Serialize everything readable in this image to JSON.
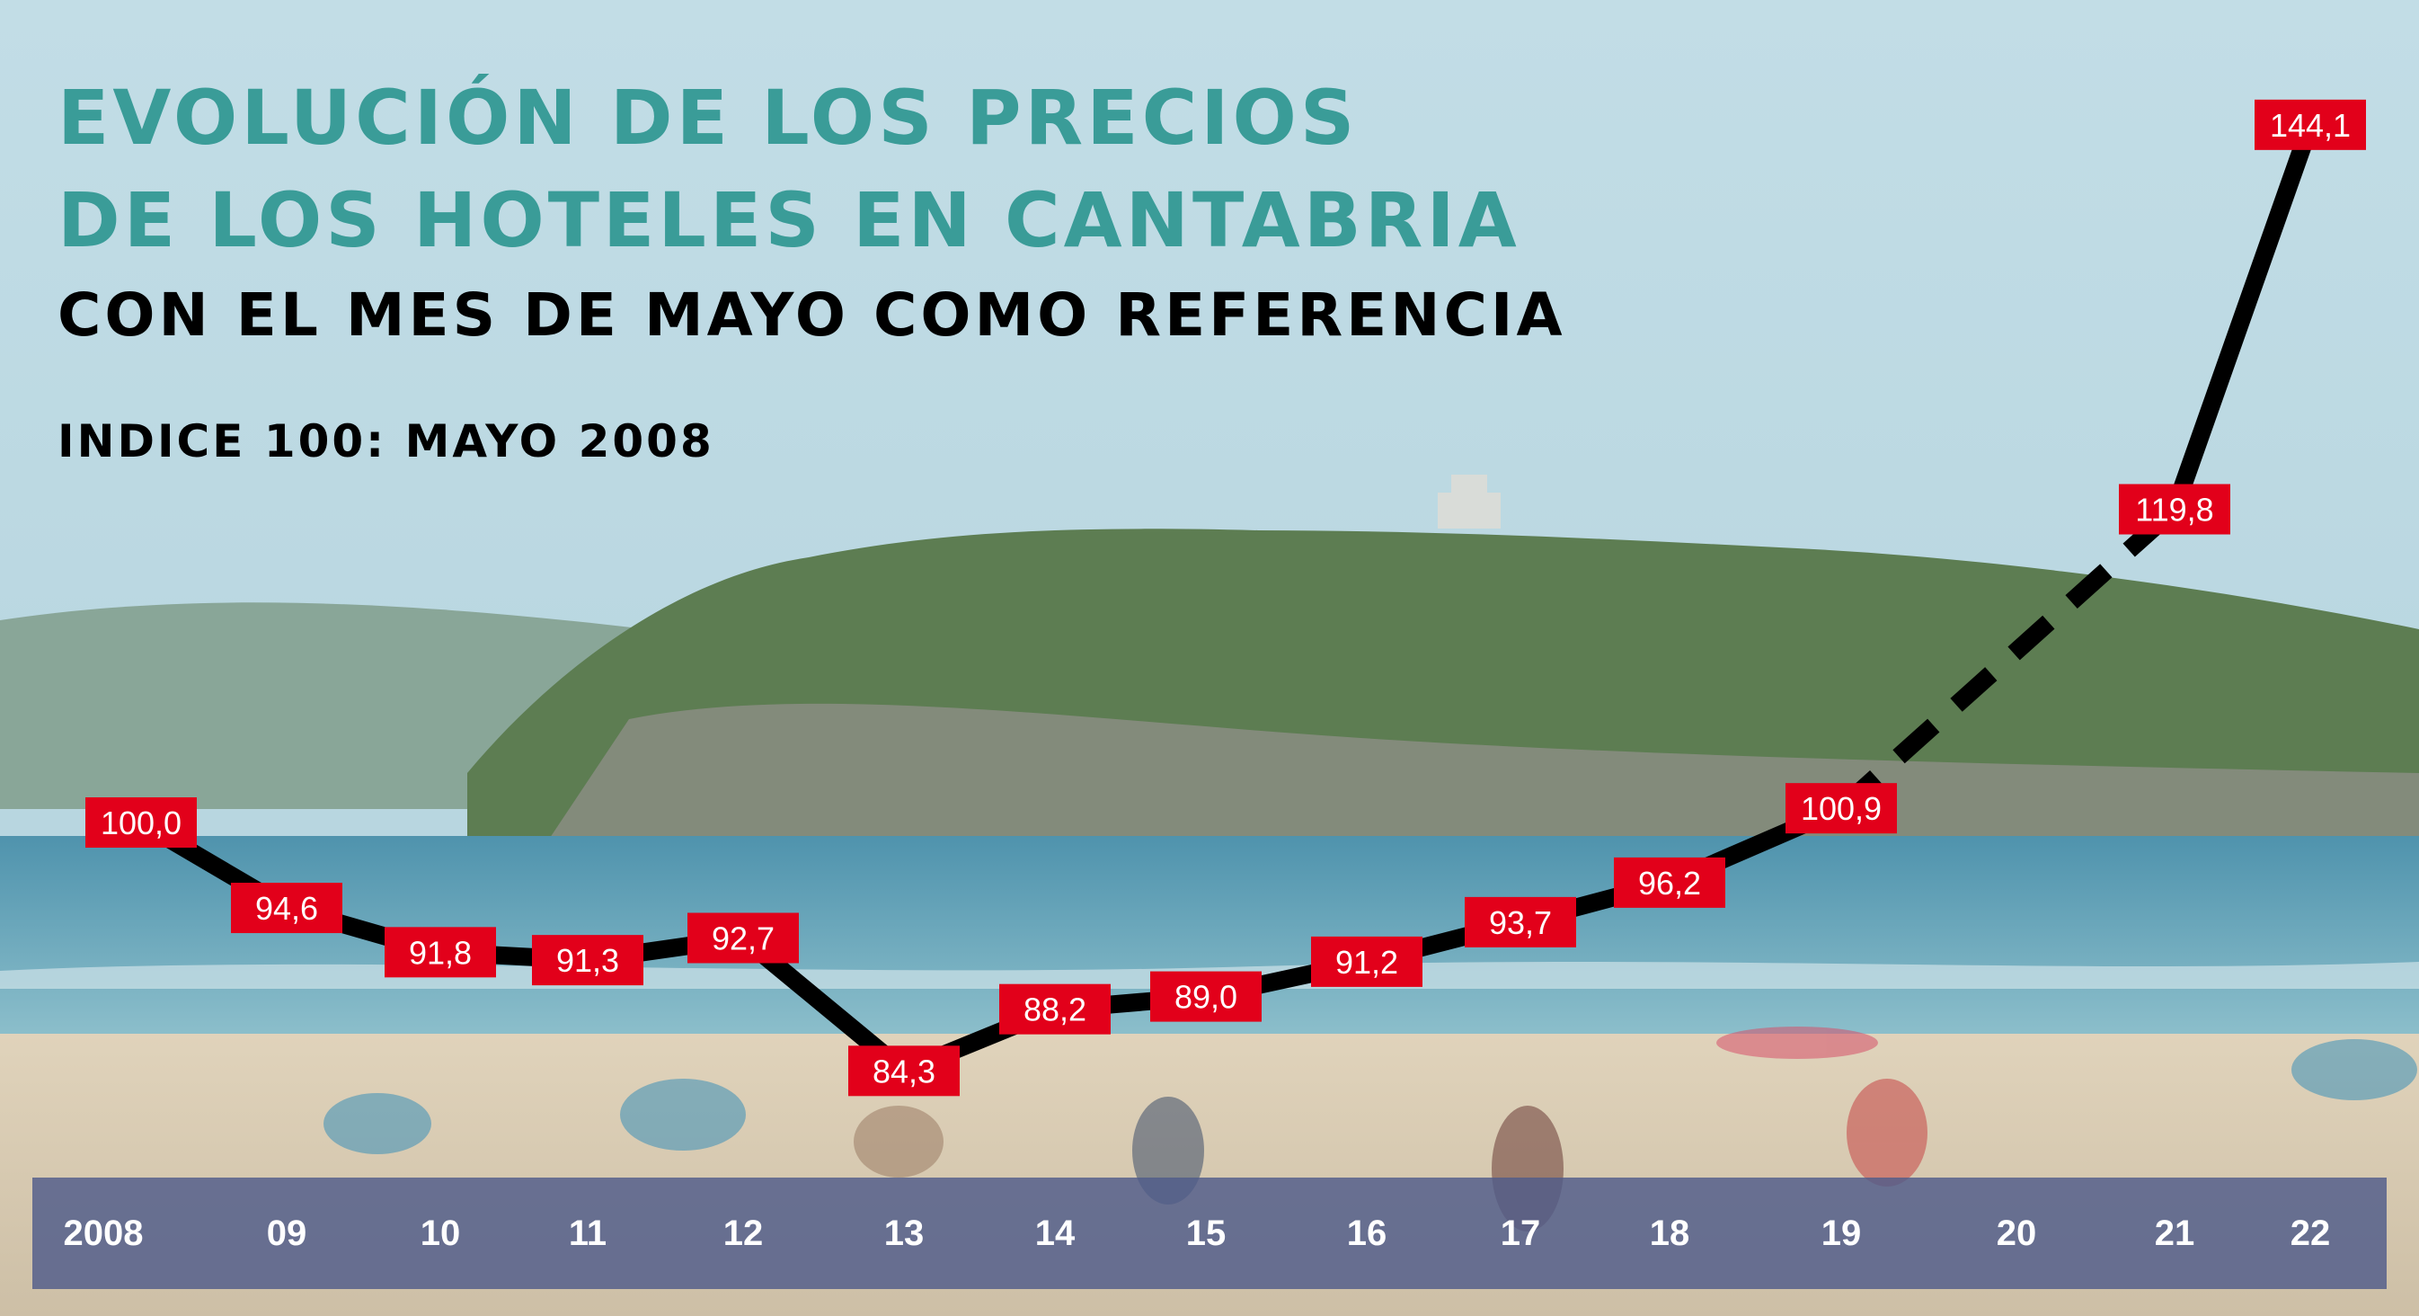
{
  "title_line1": "EVOLUCIÓN DE LOS PRECIOS",
  "title_line2": "DE LOS HOTELES EN CANTABRIA",
  "subtitle": "CON EL MES DE MAYO COMO REFERENCIA",
  "index_note": "INDICE 100: MAYO 2008",
  "colors": {
    "title": "#3a9c98",
    "text": "#000000",
    "line": "#000000",
    "label_bg": "#e2001a",
    "label_text": "#ffffff",
    "axis_band": "#4f5b8a",
    "sky": "#bcd8e2",
    "sea": "#5f9fb6",
    "sand": "#d9cdb6",
    "hill": "#5f7f55"
  },
  "chart_data": {
    "type": "line",
    "title": "EVOLUCIÓN DE LOS PRECIOS DE LOS HOTELES EN CANTABRIA",
    "subtitle": "CON EL MES DE MAYO COMO REFERENCIA",
    "note": "INDICE 100: MAYO 2008",
    "x": [
      "2008",
      "09",
      "10",
      "11",
      "12",
      "13",
      "14",
      "15",
      "16",
      "17",
      "18",
      "19",
      "20",
      "21",
      "22"
    ],
    "series": [
      {
        "values": [
          100.0,
          94.6,
          91.8,
          91.3,
          92.7,
          84.3,
          88.2,
          89.0,
          91.2,
          93.7,
          96.2,
          100.9,
          null,
          119.8,
          144.1
        ],
        "labels": [
          "100,0",
          "94,6",
          "91,8",
          "91,3",
          "92,7",
          "84,3",
          "88,2",
          "89,0",
          "91,2",
          "93,7",
          "96,2",
          "100,9",
          "",
          "119,8",
          "144,1"
        ]
      }
    ],
    "dashed_segment": [
      "19",
      "21"
    ],
    "ylim": [
      75,
      150
    ],
    "grid": false,
    "legend": "none"
  }
}
